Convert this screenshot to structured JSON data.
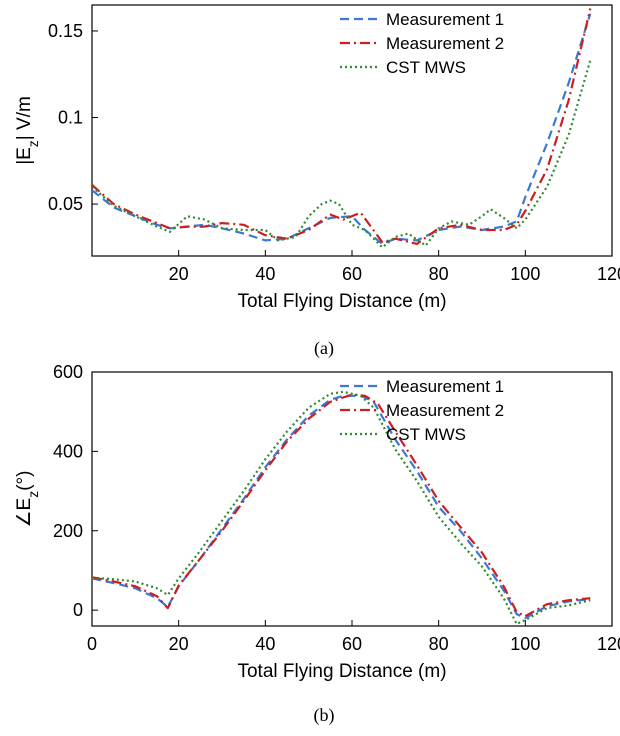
{
  "chart_data": [
    {
      "type": "line",
      "panel_caption": "(a)",
      "xlabel": "Total Flying Distance (m)",
      "ylabel_main": "|E",
      "ylabel_sub": "z",
      "ylabel_tail": "| V/m",
      "xlim": [
        0,
        120
      ],
      "ylim": [
        0.02,
        0.165
      ],
      "xticks": [
        20,
        40,
        60,
        80,
        100,
        120
      ],
      "xtick_labels": [
        "20",
        "40",
        "60",
        "80",
        "100",
        "120"
      ],
      "yticks": [
        0.05,
        0.1,
        0.15
      ],
      "ytick_labels": [
        "0.05",
        "0.1",
        "0.15"
      ],
      "grid": false,
      "legend_position": "top-right",
      "series": [
        {
          "name": "Measurement 1",
          "color": "#3b78d8",
          "style": "dashed",
          "x": [
            0,
            5,
            10,
            15,
            18,
            22,
            26,
            30,
            35,
            40,
            45,
            50,
            55,
            60,
            63,
            67,
            70,
            75,
            80,
            85,
            90,
            95,
            98,
            100,
            105,
            110,
            115
          ],
          "y": [
            0.058,
            0.048,
            0.043,
            0.038,
            0.036,
            0.037,
            0.038,
            0.036,
            0.033,
            0.029,
            0.03,
            0.036,
            0.042,
            0.043,
            0.035,
            0.027,
            0.03,
            0.029,
            0.035,
            0.037,
            0.035,
            0.037,
            0.04,
            0.054,
            0.085,
            0.12,
            0.16
          ]
        },
        {
          "name": "Measurement 2",
          "color": "#cc1f1f",
          "style": "dashdot",
          "x": [
            0,
            5,
            10,
            15,
            18,
            22,
            26,
            30,
            35,
            40,
            45,
            50,
            55,
            58,
            62,
            67,
            70,
            75,
            80,
            85,
            90,
            95,
            98,
            100,
            105,
            110,
            115
          ],
          "y": [
            0.061,
            0.05,
            0.044,
            0.039,
            0.036,
            0.037,
            0.037,
            0.039,
            0.038,
            0.032,
            0.03,
            0.035,
            0.044,
            0.041,
            0.045,
            0.028,
            0.03,
            0.027,
            0.036,
            0.038,
            0.035,
            0.035,
            0.038,
            0.046,
            0.07,
            0.11,
            0.163
          ]
        },
        {
          "name": "CST MWS",
          "color": "#2e8b2e",
          "style": "dotted",
          "x": [
            0,
            5,
            10,
            15,
            18,
            22,
            26,
            30,
            35,
            40,
            43,
            47,
            50,
            53,
            55,
            57,
            60,
            63,
            67,
            70,
            73,
            77,
            80,
            83,
            87,
            90,
            92,
            95,
            98,
            100,
            105,
            110,
            115
          ],
          "y": [
            0.06,
            0.049,
            0.043,
            0.037,
            0.034,
            0.043,
            0.041,
            0.036,
            0.035,
            0.035,
            0.029,
            0.031,
            0.043,
            0.05,
            0.052,
            0.05,
            0.038,
            0.035,
            0.025,
            0.031,
            0.033,
            0.026,
            0.036,
            0.04,
            0.038,
            0.043,
            0.047,
            0.042,
            0.036,
            0.041,
            0.06,
            0.09,
            0.133
          ]
        }
      ]
    },
    {
      "type": "line",
      "panel_caption": "(b)",
      "xlabel": "Total Flying Distance (m)",
      "ylabel_main": "∠E",
      "ylabel_sub": "z",
      "ylabel_tail": "(°)",
      "xlim": [
        0,
        120
      ],
      "ylim": [
        -40,
        600
      ],
      "xticks": [
        0,
        20,
        40,
        60,
        80,
        100,
        120
      ],
      "xtick_labels": [
        "0",
        "20",
        "40",
        "60",
        "80",
        "100",
        "120"
      ],
      "yticks": [
        0,
        200,
        400,
        600
      ],
      "ytick_labels": [
        "0",
        "200",
        "400",
        "600"
      ],
      "grid": false,
      "legend_position": "top-right",
      "series": [
        {
          "name": "Measurement 1",
          "color": "#3b78d8",
          "style": "dashed",
          "x": [
            0,
            5,
            10,
            15,
            17.5,
            20,
            25,
            30,
            35,
            40,
            45,
            50,
            55,
            58,
            62,
            65,
            70,
            75,
            80,
            85,
            90,
            95,
            98,
            100,
            105,
            110,
            115
          ],
          "y": [
            80,
            68,
            55,
            30,
            8,
            60,
            130,
            205,
            280,
            360,
            430,
            490,
            530,
            540,
            540,
            525,
            430,
            350,
            260,
            200,
            130,
            50,
            -10,
            -20,
            10,
            22,
            28
          ]
        },
        {
          "name": "Measurement 2",
          "color": "#cc1f1f",
          "style": "dashdot",
          "x": [
            0,
            5,
            10,
            15,
            17.5,
            20,
            25,
            30,
            35,
            40,
            45,
            50,
            55,
            60,
            63,
            66,
            70,
            75,
            80,
            85,
            90,
            95,
            98,
            100,
            105,
            110,
            115
          ],
          "y": [
            83,
            72,
            60,
            35,
            5,
            62,
            130,
            200,
            275,
            352,
            425,
            482,
            525,
            543,
            540,
            520,
            450,
            365,
            275,
            210,
            145,
            60,
            -5,
            -15,
            15,
            25,
            30
          ]
        },
        {
          "name": "CST MWS",
          "color": "#2e8b2e",
          "style": "dotted",
          "x": [
            0,
            5,
            10,
            15,
            17.5,
            20,
            25,
            30,
            35,
            40,
            45,
            50,
            55,
            58,
            62,
            65,
            70,
            75,
            80,
            85,
            90,
            95,
            98,
            100,
            105,
            110,
            115
          ],
          "y": [
            82,
            78,
            72,
            55,
            38,
            80,
            150,
            225,
            300,
            380,
            450,
            510,
            545,
            550,
            540,
            510,
            405,
            325,
            235,
            170,
            110,
            30,
            -35,
            -25,
            5,
            12,
            25
          ]
        }
      ]
    }
  ]
}
